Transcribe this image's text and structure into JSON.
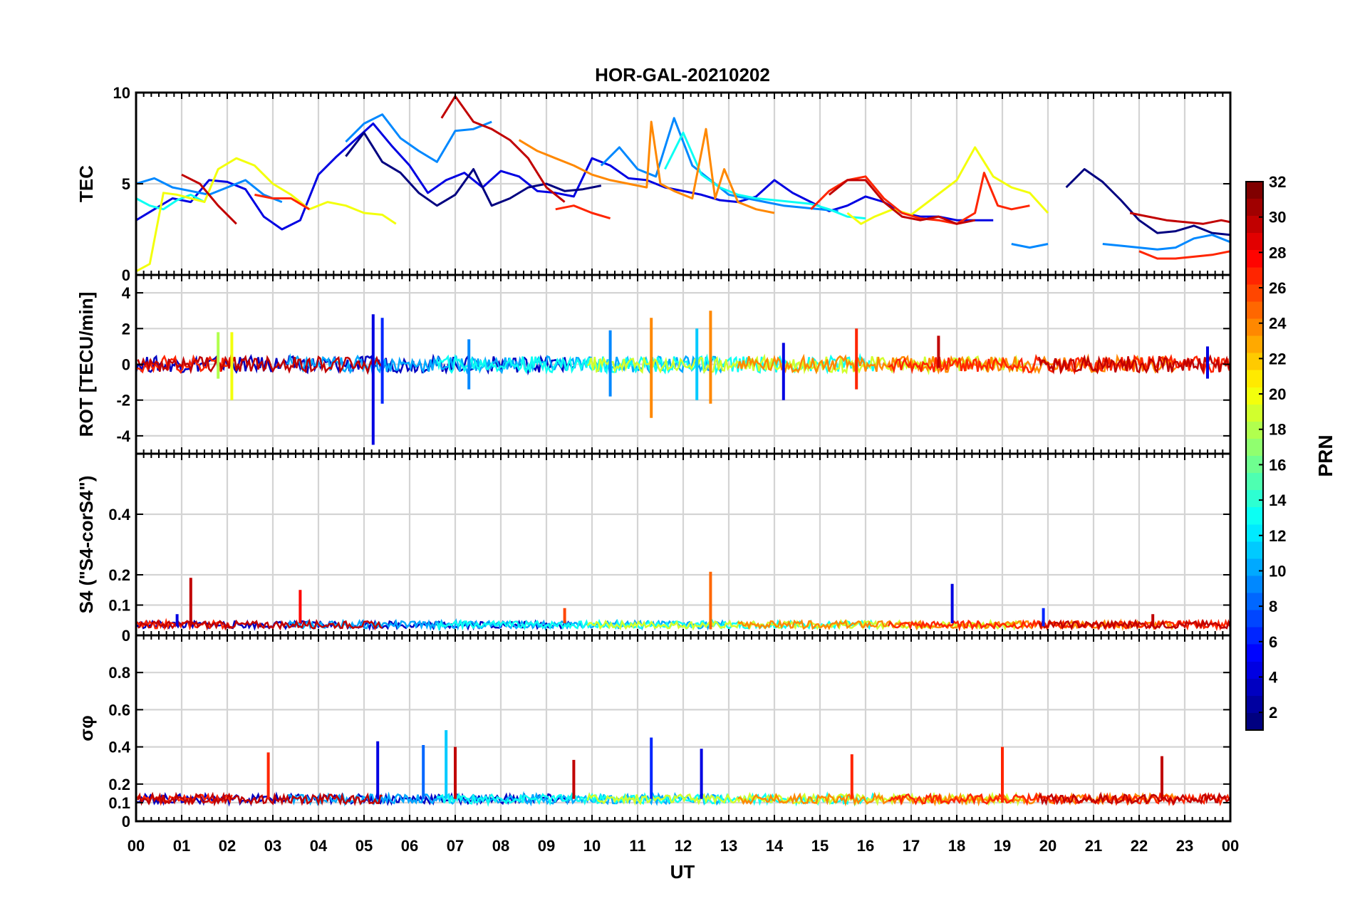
{
  "chart_data": {
    "type": "line",
    "title": "HOR-GAL-20210202",
    "xlabel": "UT",
    "xlim": [
      0,
      24
    ],
    "x_ticks": [
      "00",
      "01",
      "02",
      "03",
      "04",
      "05",
      "06",
      "07",
      "08",
      "09",
      "10",
      "11",
      "12",
      "13",
      "14",
      "15",
      "16",
      "17",
      "18",
      "19",
      "20",
      "21",
      "22",
      "23",
      "00"
    ],
    "grid": true,
    "colorbar": {
      "label": "PRN",
      "colormap": "jet",
      "range": [
        1,
        32
      ],
      "ticks": [
        "2",
        "4",
        "6",
        "8",
        "10",
        "12",
        "14",
        "16",
        "18",
        "20",
        "22",
        "24",
        "26",
        "28",
        "30",
        "32"
      ],
      "placement": "right"
    },
    "panels": [
      {
        "ylabel": "TEC",
        "ylim": [
          0,
          10
        ],
        "y_ticks": [
          "0",
          "5",
          "10"
        ],
        "series": [
          {
            "prn": 4,
            "x": [
              0.0,
              0.4,
              0.8,
              1.2,
              1.6,
              2.0,
              2.4,
              2.8,
              3.2,
              3.6,
              4.0,
              4.4,
              4.8,
              5.2,
              5.6,
              6.0,
              6.4,
              6.8,
              7.2,
              7.6,
              8.0,
              8.4,
              8.8,
              9.2,
              9.6,
              10.0,
              10.4,
              10.8,
              11.2,
              11.6,
              12.0,
              12.4,
              12.8,
              13.2,
              13.6,
              14.0,
              14.4,
              14.8,
              15.2,
              15.6,
              16.0,
              16.4,
              16.8,
              17.2,
              17.6,
              18.0,
              18.4,
              18.8
            ],
            "y": [
              3.0,
              3.6,
              4.2,
              4.0,
              5.2,
              5.1,
              4.7,
              3.2,
              2.5,
              3.0,
              5.5,
              6.5,
              7.4,
              8.3,
              7.1,
              6.0,
              4.5,
              5.2,
              5.6,
              4.8,
              5.7,
              5.4,
              4.6,
              4.5,
              4.3,
              6.4,
              6.0,
              5.3,
              5.2,
              4.8,
              4.6,
              4.4,
              4.1,
              4.0,
              4.3,
              5.2,
              4.5,
              4.0,
              3.5,
              3.8,
              4.3,
              4.0,
              3.4,
              3.2,
              3.2,
              3.0,
              3.0,
              3.0
            ]
          },
          {
            "prn": 1,
            "x": [
              4.6,
              5.0,
              5.4,
              5.8,
              6.2,
              6.6,
              7.0,
              7.4,
              7.8,
              8.2,
              8.6,
              9.0,
              9.4,
              9.8,
              10.2,
              20.4,
              20.8,
              21.2,
              21.6,
              22.0,
              22.4,
              22.8,
              23.2,
              23.6,
              24.0
            ],
            "y": [
              6.5,
              7.8,
              6.2,
              5.6,
              4.5,
              3.8,
              4.4,
              5.8,
              3.8,
              4.2,
              4.8,
              5.0,
              4.6,
              4.7,
              4.9,
              4.8,
              5.8,
              5.1,
              4.1,
              3.0,
              2.3,
              2.4,
              2.7,
              2.3,
              2.2
            ]
          },
          {
            "prn": 9,
            "x": [
              0.0,
              0.4,
              0.8,
              1.2,
              1.6,
              2.0,
              2.4,
              2.8,
              3.2,
              4.6,
              5.0,
              5.4,
              5.8,
              6.2,
              6.6,
              7.0,
              7.4,
              7.8,
              10.2,
              10.6,
              11.0,
              11.4,
              11.8,
              12.2,
              12.6,
              13.0,
              13.4,
              13.8,
              14.2,
              14.6,
              15.0,
              15.4,
              19.2,
              19.6,
              20.0,
              21.2,
              21.6,
              22.0,
              22.4,
              22.8,
              23.2,
              23.6,
              24.0
            ],
            "y": [
              5.0,
              5.3,
              4.8,
              4.6,
              4.4,
              4.8,
              5.2,
              4.4,
              4.0,
              7.3,
              8.3,
              8.8,
              7.5,
              6.8,
              6.2,
              7.9,
              8.0,
              8.4,
              6.0,
              7.0,
              5.8,
              5.4,
              8.6,
              6.0,
              5.2,
              4.4,
              4.2,
              4.0,
              3.8,
              3.7,
              3.6,
              3.5,
              1.7,
              1.5,
              1.7,
              1.7,
              1.6,
              1.5,
              1.4,
              1.5,
              2.0,
              2.2,
              1.8
            ]
          },
          {
            "prn": 13,
            "x": [
              0.0,
              0.3,
              0.6,
              0.9,
              1.2,
              1.5,
              11.6,
              12.0,
              12.4,
              12.8,
              13.2,
              13.6,
              14.0,
              14.4,
              14.8,
              15.2,
              15.6,
              16.0
            ],
            "y": [
              4.2,
              3.8,
              3.6,
              4.1,
              4.4,
              4.0,
              5.8,
              7.8,
              5.5,
              4.8,
              4.4,
              4.2,
              4.1,
              4.0,
              3.9,
              3.6,
              3.2,
              3.1
            ]
          },
          {
            "prn": 20,
            "x": [
              0.0,
              0.3,
              0.6,
              0.9,
              1.2,
              1.5,
              1.8,
              2.2,
              2.6,
              3.0,
              3.4,
              3.8,
              4.2,
              4.6,
              5.0,
              5.4,
              5.7,
              15.6,
              15.9,
              16.2,
              16.6,
              17.0,
              18.0,
              18.4,
              18.8,
              19.2,
              19.6,
              20.0
            ],
            "y": [
              0.2,
              0.6,
              4.5,
              4.4,
              4.2,
              4.0,
              5.8,
              6.4,
              6.0,
              5.0,
              4.4,
              3.6,
              4.0,
              3.8,
              3.4,
              3.3,
              2.8,
              3.4,
              2.8,
              3.2,
              3.6,
              3.3,
              5.2,
              7.0,
              5.4,
              4.8,
              4.5,
              3.4
            ]
          },
          {
            "prn": 24,
            "x": [
              8.4,
              8.8,
              9.2,
              9.6,
              10.0,
              10.4,
              10.8,
              11.2,
              11.3,
              11.5,
              11.8,
              12.2,
              12.5,
              12.7,
              12.9,
              13.2,
              13.6,
              14.0
            ],
            "y": [
              7.4,
              6.8,
              6.4,
              6.0,
              5.5,
              5.2,
              5.0,
              4.8,
              8.4,
              5.0,
              4.6,
              4.2,
              8.0,
              4.2,
              5.8,
              4.0,
              3.6,
              3.4
            ]
          },
          {
            "prn": 27,
            "x": [
              2.6,
              3.0,
              3.4,
              3.8,
              9.2,
              9.6,
              10.0,
              10.4,
              14.8,
              15.2,
              15.6,
              16.0,
              16.4,
              16.8,
              17.2,
              17.6,
              18.0,
              18.4,
              18.6,
              18.9,
              19.2,
              19.6,
              22.0,
              22.4,
              22.8,
              23.2,
              23.6,
              24.0
            ],
            "y": [
              4.4,
              4.2,
              4.2,
              3.6,
              3.6,
              3.8,
              3.4,
              3.1,
              3.6,
              4.6,
              5.2,
              5.4,
              4.2,
              3.4,
              3.1,
              3.0,
              2.8,
              3.4,
              5.6,
              3.8,
              3.6,
              3.8,
              1.3,
              0.9,
              0.9,
              1.0,
              1.1,
              1.3
            ]
          },
          {
            "prn": 30,
            "x": [
              1.0,
              1.4,
              1.8,
              2.2,
              6.7,
              7.0,
              7.4,
              7.8,
              8.2,
              8.6,
              9.0,
              9.4,
              15.2,
              15.6,
              16.0,
              16.4,
              16.8,
              17.2,
              17.6,
              18.0,
              18.4,
              21.8,
              22.2,
              22.6,
              23.0,
              23.4,
              23.8,
              24.0
            ],
            "y": [
              5.5,
              5.0,
              3.8,
              2.8,
              8.6,
              9.8,
              8.4,
              8.0,
              7.4,
              6.4,
              4.8,
              4.0,
              4.4,
              5.2,
              5.2,
              4.0,
              3.2,
              3.0,
              3.2,
              2.8,
              3.0,
              3.4,
              3.2,
              3.0,
              2.9,
              2.8,
              3.0,
              2.9
            ]
          }
        ]
      },
      {
        "ylabel": "ROT [TECU/min]",
        "ylim": [
          -5,
          5
        ],
        "y_ticks": [
          "-4",
          "-2",
          "0",
          "2",
          "4"
        ],
        "spikes": [
          {
            "prn": 18,
            "x": 1.8,
            "min": -0.8,
            "max": 1.8
          },
          {
            "prn": 20,
            "x": 2.1,
            "min": -2.0,
            "max": 1.8
          },
          {
            "prn": 4,
            "x": 5.2,
            "min": -4.5,
            "max": 2.8
          },
          {
            "prn": 6,
            "x": 5.4,
            "min": -2.2,
            "max": 2.6
          },
          {
            "prn": 9,
            "x": 7.3,
            "min": -1.4,
            "max": 1.4
          },
          {
            "prn": 9,
            "x": 10.4,
            "min": -1.8,
            "max": 1.9
          },
          {
            "prn": 24,
            "x": 11.3,
            "min": -3.0,
            "max": 2.6
          },
          {
            "prn": 11,
            "x": 12.3,
            "min": -2.0,
            "max": 2.0
          },
          {
            "prn": 24,
            "x": 12.6,
            "min": -2.2,
            "max": 3.0
          },
          {
            "prn": 4,
            "x": 14.2,
            "min": -2.0,
            "max": 1.2
          },
          {
            "prn": 27,
            "x": 15.8,
            "min": -1.4,
            "max": 2.0
          },
          {
            "prn": 30,
            "x": 17.6,
            "min": -0.2,
            "max": 1.6
          },
          {
            "prn": 4,
            "x": 23.5,
            "min": -0.8,
            "max": 1.0
          }
        ]
      },
      {
        "ylabel": "S4 (\"S4-corS4\")",
        "ylim": [
          0,
          0.6
        ],
        "y_ticks": [
          "0",
          "0.1",
          "0.2",
          "0.4"
        ],
        "spikes": [
          {
            "prn": 4,
            "x": 0.9,
            "min": 0.03,
            "max": 0.07
          },
          {
            "prn": 30,
            "x": 1.2,
            "min": 0.04,
            "max": 0.19
          },
          {
            "prn": 28,
            "x": 3.6,
            "min": 0.04,
            "max": 0.15
          },
          {
            "prn": 26,
            "x": 9.4,
            "min": 0.04,
            "max": 0.09
          },
          {
            "prn": 25,
            "x": 12.6,
            "min": 0.02,
            "max": 0.21
          },
          {
            "prn": 4,
            "x": 17.9,
            "min": 0.04,
            "max": 0.17
          },
          {
            "prn": 6,
            "x": 19.9,
            "min": 0.03,
            "max": 0.09
          },
          {
            "prn": 30,
            "x": 22.3,
            "min": 0.03,
            "max": 0.07
          }
        ]
      },
      {
        "ylabel": "σφ",
        "ylim": [
          0,
          1.0
        ],
        "y_ticks": [
          "0",
          "0.1",
          "0.2",
          "0.4",
          "0.6",
          "0.8"
        ],
        "spikes": [
          {
            "prn": 27,
            "x": 2.9,
            "min": 0.12,
            "max": 0.37
          },
          {
            "prn": 4,
            "x": 5.3,
            "min": 0.12,
            "max": 0.43
          },
          {
            "prn": 8,
            "x": 6.3,
            "min": 0.12,
            "max": 0.41
          },
          {
            "prn": 11,
            "x": 6.8,
            "min": 0.12,
            "max": 0.49
          },
          {
            "prn": 30,
            "x": 7.0,
            "min": 0.12,
            "max": 0.4
          },
          {
            "prn": 30,
            "x": 9.6,
            "min": 0.12,
            "max": 0.33
          },
          {
            "prn": 6,
            "x": 11.3,
            "min": 0.12,
            "max": 0.45
          },
          {
            "prn": 4,
            "x": 12.4,
            "min": 0.12,
            "max": 0.39
          },
          {
            "prn": 27,
            "x": 15.7,
            "min": 0.12,
            "max": 0.36
          },
          {
            "prn": 27,
            "x": 19.0,
            "min": 0.1,
            "max": 0.4
          },
          {
            "prn": 30,
            "x": 22.5,
            "min": 0.12,
            "max": 0.35
          }
        ]
      }
    ]
  }
}
